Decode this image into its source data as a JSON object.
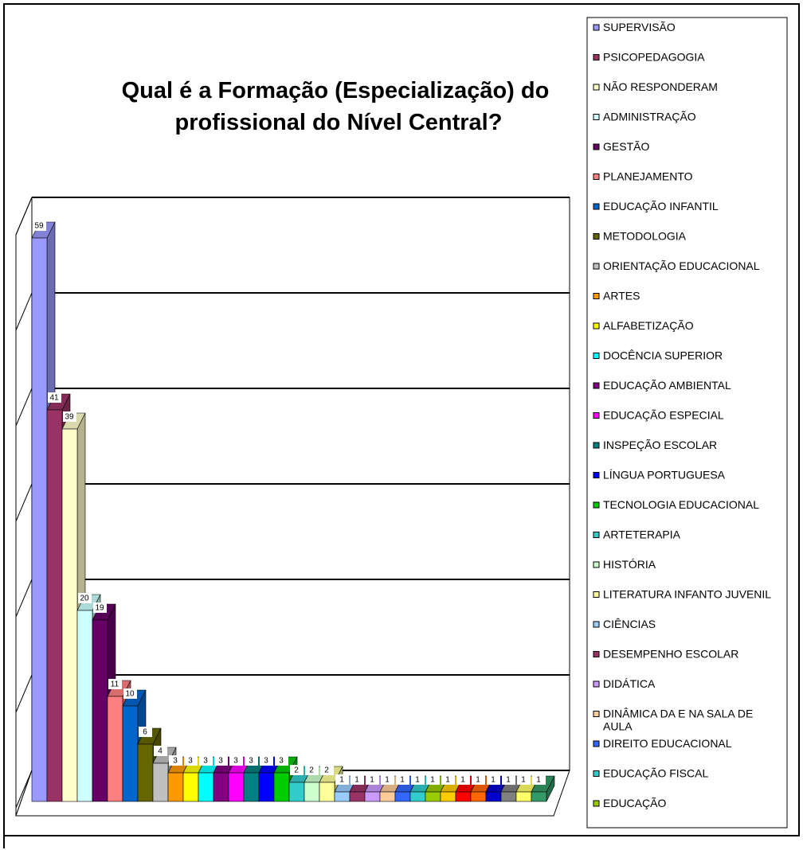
{
  "chart_data": {
    "type": "bar3d",
    "title": "Qual é a Formação (Especialização) do profissional do Nível Central?",
    "categories": [
      "SUPERVISÃO",
      "PSICOPEDAGOGIA",
      "NÃO RESPONDERAM",
      "ADMINISTRAÇÃO",
      "GESTÃO",
      "PLANEJAMENTO",
      "EDUCAÇÃO INFANTIL",
      "METODOLOGIA",
      "ORIENTAÇÃO EDUCACIONAL",
      "ARTES",
      "ALFABETIZAÇÃO",
      "DOCÊNCIA SUPERIOR",
      "EDUCAÇÃO AMBIENTAL",
      "EDUCAÇÃO ESPECIAL",
      "INSPEÇÃO ESCOLAR",
      "LÍNGUA PORTUGUESA",
      "TECNOLOGIA EDUCACIONAL",
      "ARTETERAPIA",
      "HISTÓRIA",
      "LITERATURA INFANTO JUVENIL",
      "CIÊNCIAS",
      "DESEMPENHO ESCOLAR",
      "DIDÁTICA",
      "DINÂMICA DA E NA SALA DE AULA",
      "DIREITO EDUCACIONAL",
      "EDUCAÇÃO FISCAL",
      "EDUCAÇÃO",
      null,
      null,
      null,
      null,
      null,
      null,
      null
    ],
    "values": [
      59,
      41,
      39,
      20,
      19,
      11,
      10,
      6,
      4,
      3,
      3,
      3,
      3,
      3,
      3,
      3,
      3,
      2,
      2,
      2,
      1,
      1,
      1,
      1,
      1,
      1,
      1,
      1,
      1,
      1,
      1,
      1,
      1,
      1
    ],
    "colors": [
      "#9999ff",
      "#993366",
      "#ffffcc",
      "#ccffff",
      "#660066",
      "#ff8080",
      "#0066cc",
      "#666600",
      "#c0c0c0",
      "#ff9900",
      "#ffff00",
      "#00ffff",
      "#800080",
      "#ff00ff",
      "#008080",
      "#0000ff",
      "#00cc00",
      "#33cccc",
      "#ccffcc",
      "#ffff99",
      "#99ccff",
      "#993366",
      "#cc99ff",
      "#ffcc99",
      "#3366ff",
      "#33cccc",
      "#99cc00",
      "#ffcc00",
      "#ff0000",
      "#ff6600",
      "#0000cc",
      "#808080",
      "#ffff66",
      "#339966"
    ],
    "ylim": [
      0,
      60
    ],
    "yticks": [
      0,
      10,
      20,
      30,
      40,
      50,
      60
    ],
    "grid": true,
    "legend": "right"
  }
}
